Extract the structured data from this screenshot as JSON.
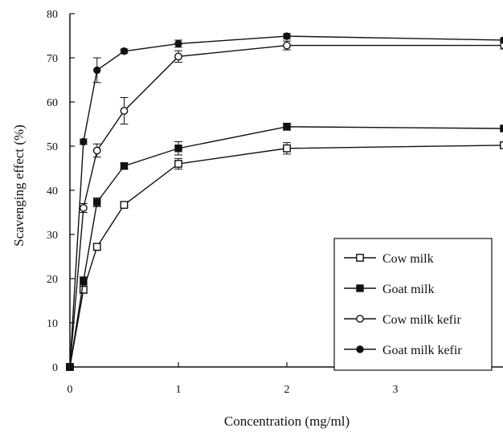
{
  "chart_data": {
    "type": "line",
    "xlabel": "Concentration (mg/ml)",
    "ylabel": "Scavenging effect (%)",
    "x_ticks": [
      0,
      1,
      2,
      3
    ],
    "x_tick_labels": [
      "0",
      "1",
      "2",
      "3"
    ],
    "xlim": [
      0,
      4
    ],
    "y_ticks": [
      0,
      10,
      20,
      30,
      40,
      50,
      60,
      70,
      80
    ],
    "y_tick_labels": [
      "0",
      "10",
      "20",
      "30",
      "40",
      "50",
      "60",
      "70",
      "80"
    ],
    "ylim": [
      0,
      80
    ],
    "grid": false,
    "legend_position": "bottom-right",
    "x": [
      0,
      0.125,
      0.25,
      0.5,
      1,
      2,
      4
    ],
    "series": [
      {
        "name": "Cow milk",
        "marker": "open-square",
        "values": [
          0,
          17.5,
          27.2,
          36.7,
          46.0,
          49.5,
          50.2
        ],
        "errors": [
          0,
          0.8,
          0.8,
          0.6,
          1.2,
          1.3,
          0.6
        ]
      },
      {
        "name": "Goat milk",
        "marker": "filled-square",
        "values": [
          0,
          19.5,
          37.3,
          45.5,
          49.5,
          54.4,
          54.0
        ],
        "errors": [
          0,
          0.9,
          1.0,
          0.7,
          1.5,
          0.8,
          0.6
        ]
      },
      {
        "name": "Cow milk kefir",
        "marker": "open-circle",
        "values": [
          0,
          36.0,
          49.0,
          58.0,
          70.3,
          72.8,
          72.8
        ],
        "errors": [
          0,
          1.0,
          1.5,
          3.0,
          1.3,
          1.0,
          0.8
        ]
      },
      {
        "name": "Goat milk kefir",
        "marker": "filled-circle",
        "values": [
          0,
          51.0,
          67.2,
          71.5,
          73.2,
          74.9,
          74.0
        ],
        "errors": [
          0,
          0.6,
          2.8,
          0.5,
          0.8,
          0.6,
          0.5
        ]
      }
    ]
  }
}
